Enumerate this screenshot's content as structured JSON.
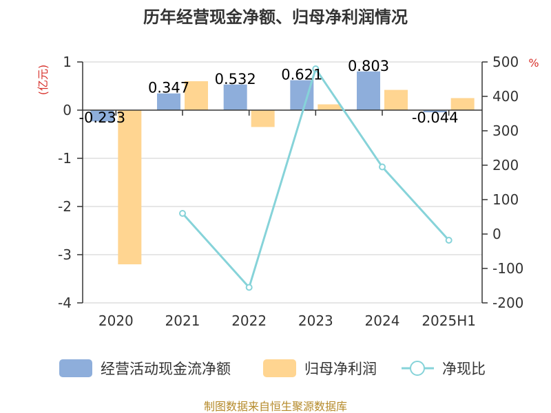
{
  "title": "历年经营现金净额、归母净利润情况",
  "source": "制图数据来自恒生聚源数据库",
  "left_unit": "(亿元)",
  "right_unit": "%",
  "colors": {
    "cash": "#8eaedb",
    "profit": "#ffd591",
    "ratio": "#86d3d9",
    "unit": "#d7302a",
    "source": "#b58a2a"
  },
  "chart_data": {
    "type": "bar",
    "categories": [
      "2020",
      "2021",
      "2022",
      "2023",
      "2024",
      "2025H1"
    ],
    "series": [
      {
        "name": "经营活动现金流净额",
        "type": "bar",
        "axis": "left",
        "values": [
          -0.233,
          0.347,
          0.532,
          0.621,
          0.803,
          -0.044
        ],
        "labels": [
          "-0.233",
          "0.347",
          "0.532",
          "0.621",
          "0.803",
          "-0.044"
        ]
      },
      {
        "name": "归母净利润",
        "type": "bar",
        "axis": "left",
        "values": [
          -3.2,
          0.6,
          -0.35,
          0.12,
          0.42,
          0.25
        ]
      },
      {
        "name": "净现比",
        "type": "line",
        "axis": "right",
        "values": [
          null,
          60,
          -155,
          480,
          195,
          -18
        ]
      }
    ],
    "left_axis": {
      "min": -4,
      "max": 1,
      "ticks": [
        1,
        0,
        -1,
        -2,
        -3,
        -4
      ]
    },
    "right_axis": {
      "min": -200,
      "max": 500,
      "ticks": [
        500,
        400,
        300,
        200,
        100,
        0,
        -100,
        -200
      ]
    },
    "grid": true,
    "legend_position": "bottom"
  }
}
